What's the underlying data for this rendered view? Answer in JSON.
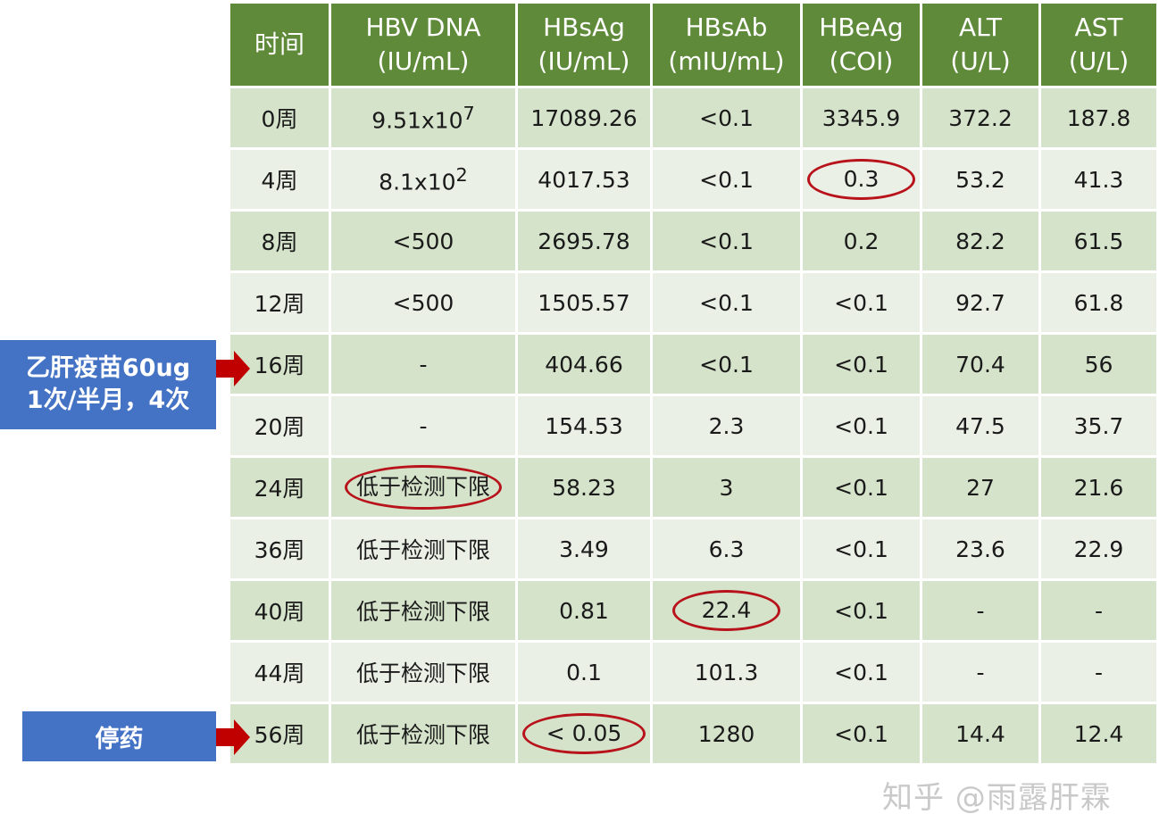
{
  "table": {
    "headers": [
      {
        "line1": "时间",
        "line2": ""
      },
      {
        "line1": "HBV DNA",
        "line2": "(IU/mL)"
      },
      {
        "line1": "HBsAg",
        "line2": "(IU/mL)"
      },
      {
        "line1": "HBsAb",
        "line2": "(mIU/mL)"
      },
      {
        "line1": "HBeAg",
        "line2": "(COI)"
      },
      {
        "line1": "ALT",
        "line2": "(U/L)"
      },
      {
        "line1": "AST",
        "line2": "(U/L)"
      }
    ],
    "rows": [
      {
        "time": "0周",
        "dna": "9.51x10",
        "dna_sup": "7",
        "hbsag": "17089.26",
        "hbsab": "<0.1",
        "hbeag": "3345.9",
        "alt": "372.2",
        "ast": "187.8"
      },
      {
        "time": "4周",
        "dna": "8.1x10",
        "dna_sup": "2",
        "hbsag": "4017.53",
        "hbsab": "<0.1",
        "hbeag": "0.3",
        "alt": "53.2",
        "ast": "41.3"
      },
      {
        "time": "8周",
        "dna": "<500",
        "hbsag": "2695.78",
        "hbsab": "<0.1",
        "hbeag": "0.2",
        "alt": "82.2",
        "ast": "61.5"
      },
      {
        "time": "12周",
        "dna": "<500",
        "hbsag": "1505.57",
        "hbsab": "<0.1",
        "hbeag": "<0.1",
        "alt": "92.7",
        "ast": "61.8"
      },
      {
        "time": "16周",
        "dna": "-",
        "hbsag": "404.66",
        "hbsab": "<0.1",
        "hbeag": "<0.1",
        "alt": "70.4",
        "ast": "56"
      },
      {
        "time": "20周",
        "dna": "-",
        "hbsag": "154.53",
        "hbsab": "2.3",
        "hbeag": "<0.1",
        "alt": "47.5",
        "ast": "35.7"
      },
      {
        "time": "24周",
        "dna": "低于检测下限",
        "hbsag": "58.23",
        "hbsab": "3",
        "hbeag": "<0.1",
        "alt": "27",
        "ast": "21.6"
      },
      {
        "time": "36周",
        "dna": "低于检测下限",
        "hbsag": "3.49",
        "hbsab": "6.3",
        "hbeag": "<0.1",
        "alt": "23.6",
        "ast": "22.9"
      },
      {
        "time": "40周",
        "dna": "低于检测下限",
        "hbsag": "0.81",
        "hbsab": "22.4",
        "hbeag": "<0.1",
        "alt": "-",
        "ast": "-"
      },
      {
        "time": "44周",
        "dna": "低于检测下限",
        "hbsag": "0.1",
        "hbsab": "101.3",
        "hbeag": "<0.1",
        "alt": "-",
        "ast": "-"
      },
      {
        "time": "56周",
        "dna": "低于检测下限",
        "hbsag": "< 0.05",
        "hbsab": "1280",
        "hbeag": "<0.1",
        "alt": "14.4",
        "ast": "12.4"
      }
    ]
  },
  "annotations": {
    "vaccine_line1": "乙肝疫苗60ug",
    "vaccine_line2": "1次/半月，4次",
    "stop": "停药"
  },
  "watermark": "知乎 @雨露肝霖",
  "colors": {
    "header_bg": "#5e8a3a",
    "row_dark": "#d5e3cb",
    "row_light": "#eaf0e6",
    "annotation_box": "#4472c4",
    "arrow": "#c00000",
    "highlight_circle": "#b8121b"
  }
}
